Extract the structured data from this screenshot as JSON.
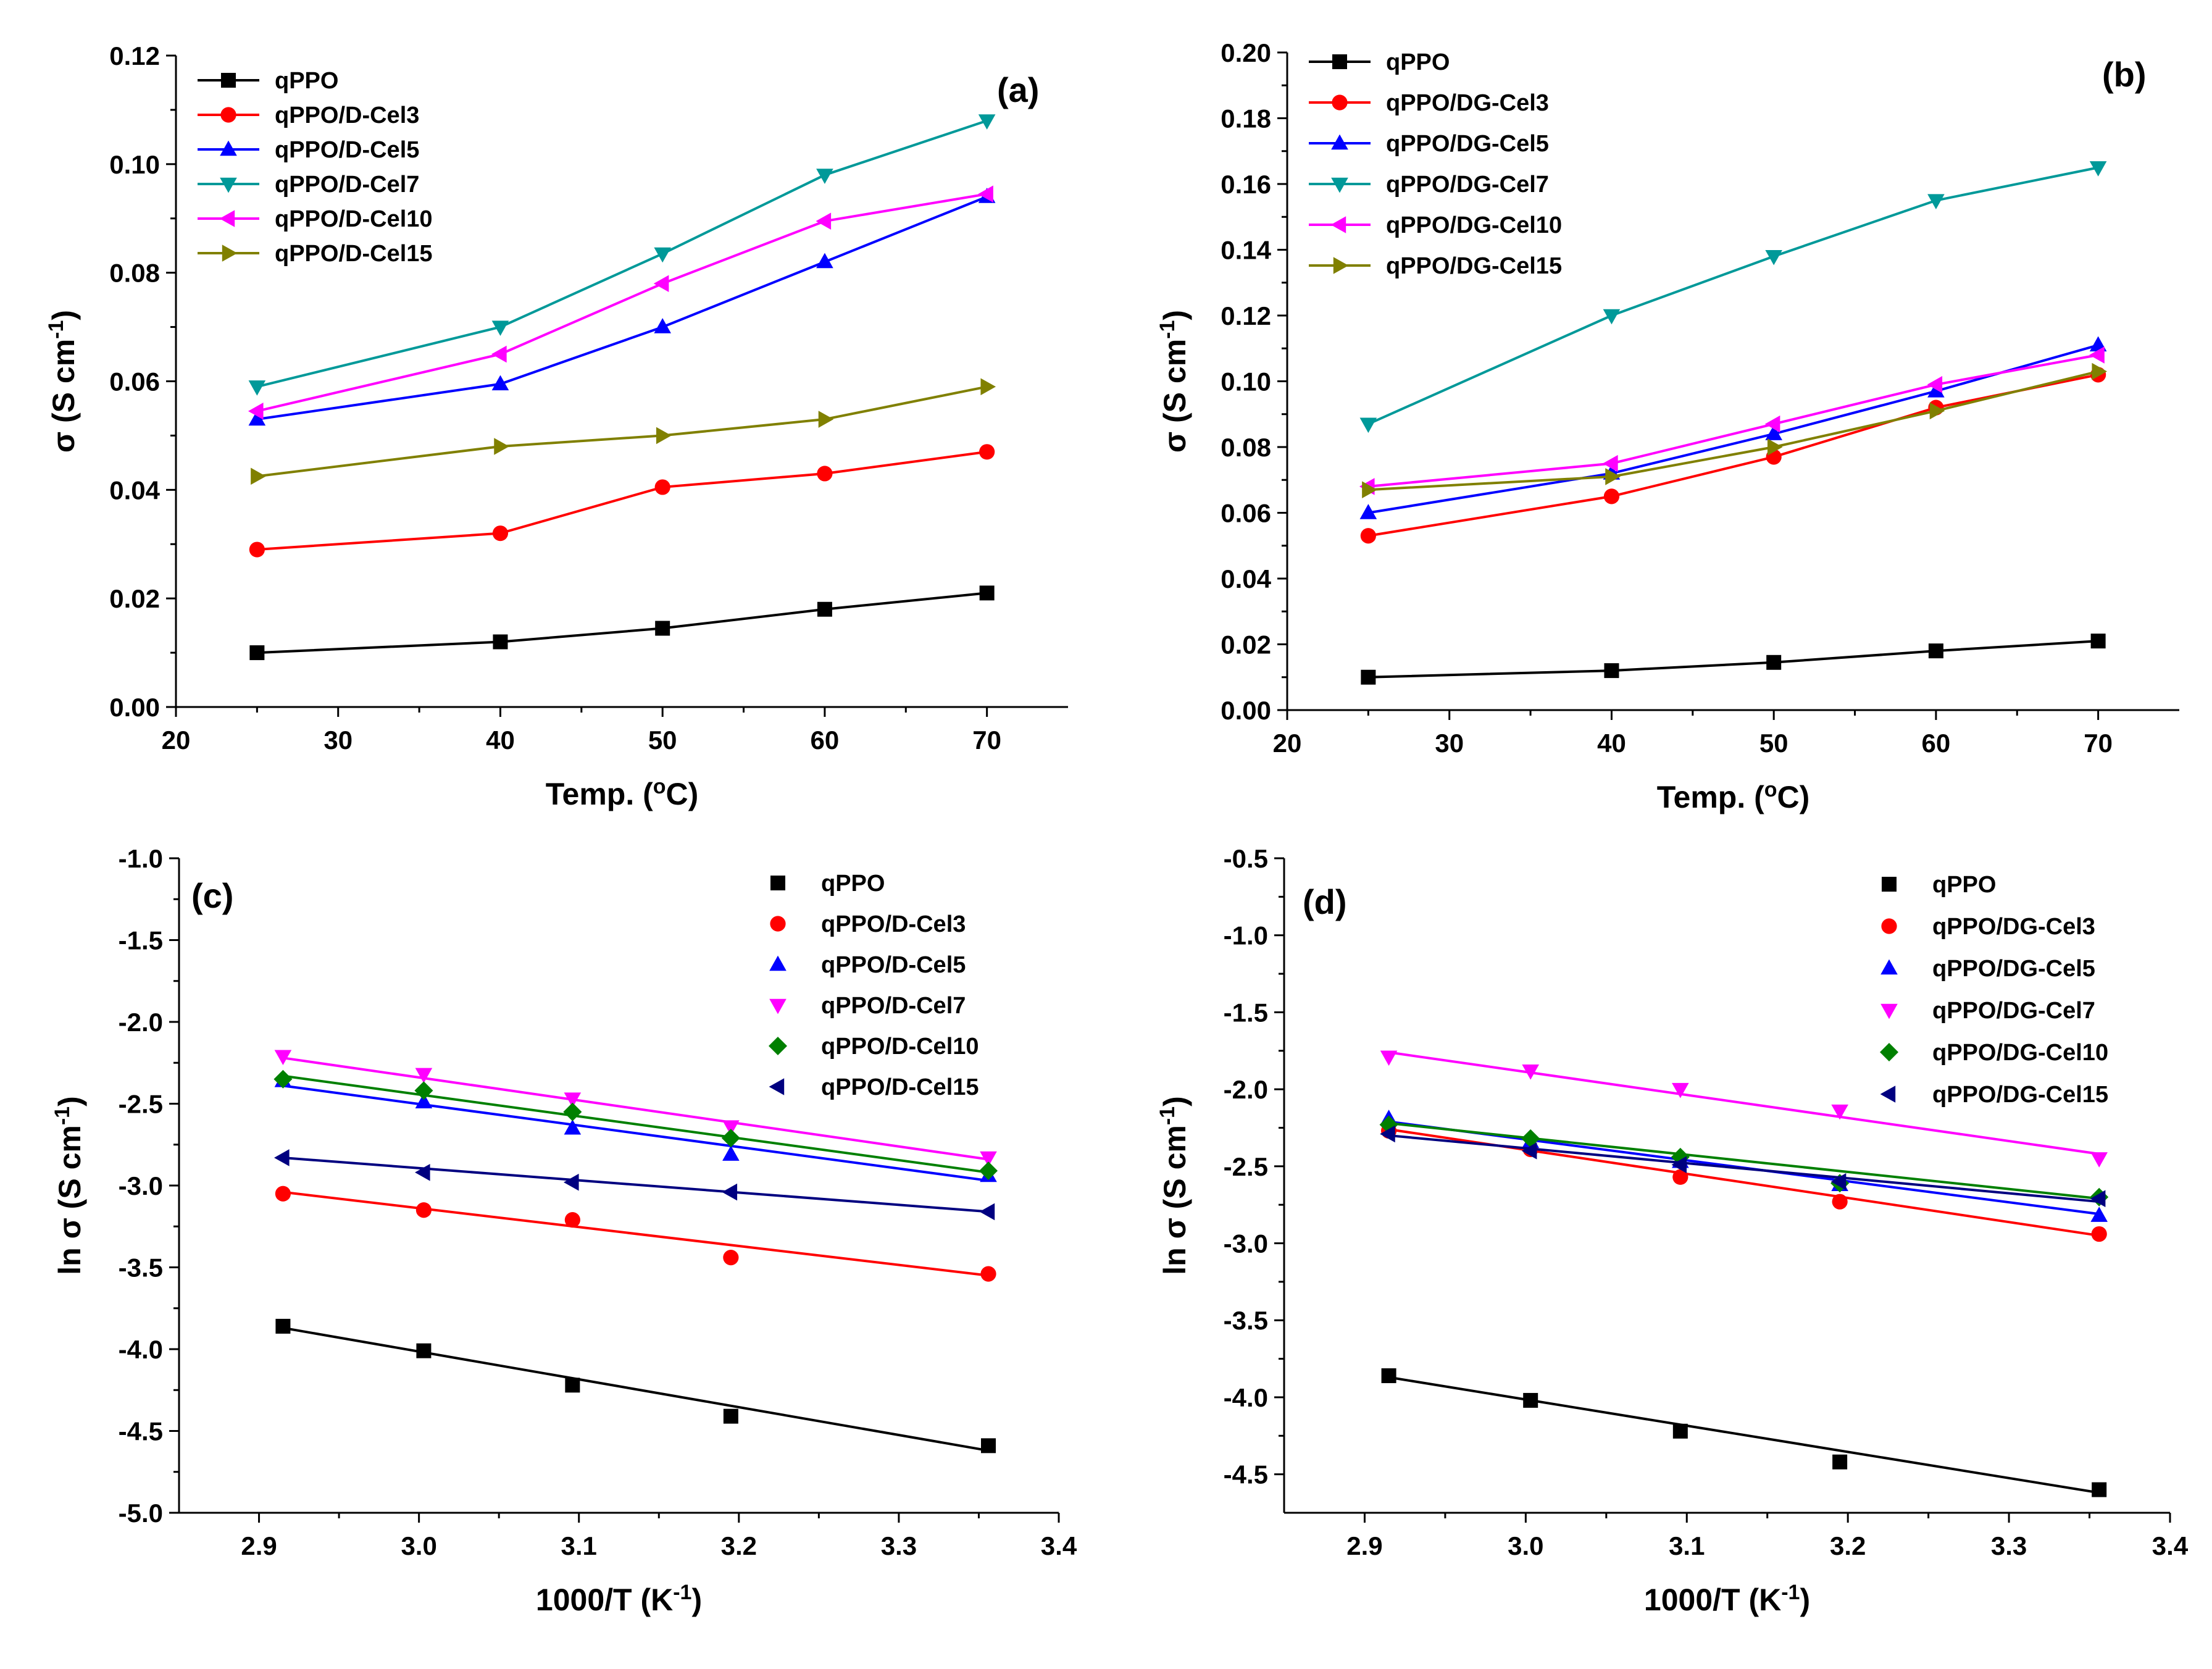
{
  "chart_data": [
    {
      "id": "a",
      "type": "line",
      "panel_label": "(a)",
      "xlabel": "Temp. (",
      "xlabel_sup": "o",
      "xlabel_tail": "C)",
      "ylabel": "σ (S cm",
      "ylabel_sup": "-1",
      "ylabel_tail": ")",
      "xlim": [
        20,
        75
      ],
      "ylim": [
        0,
        0.12
      ],
      "xticks": [
        20,
        30,
        40,
        50,
        60,
        70
      ],
      "yticks": [
        0.0,
        0.02,
        0.04,
        0.06,
        0.08,
        0.1,
        0.12
      ],
      "xtick_labels": [
        "20",
        "30",
        "40",
        "50",
        "60",
        "70"
      ],
      "ytick_labels": [
        "0.00",
        "0.02",
        "0.04",
        "0.06",
        "0.08",
        "0.10",
        "0.12"
      ],
      "legend_position": "top-left",
      "x": [
        25,
        40,
        50,
        60,
        70
      ],
      "series": [
        {
          "name": "qPPO",
          "color": "#000000",
          "marker": "square",
          "values": [
            0.01,
            0.012,
            0.0145,
            0.018,
            0.021
          ]
        },
        {
          "name": "qPPO/D-Cel3",
          "color": "#ff0000",
          "marker": "circle",
          "values": [
            0.029,
            0.032,
            0.0405,
            0.043,
            0.047
          ]
        },
        {
          "name": "qPPO/D-Cel5",
          "color": "#0000ff",
          "marker": "triangle-up",
          "values": [
            0.053,
            0.0595,
            0.07,
            0.082,
            0.094
          ]
        },
        {
          "name": "qPPO/D-Cel7",
          "color": "#009999",
          "marker": "triangle-down",
          "values": [
            0.059,
            0.07,
            0.0835,
            0.098,
            0.108
          ]
        },
        {
          "name": "qPPO/D-Cel10",
          "color": "#ff00ff",
          "marker": "triangle-left",
          "values": [
            0.0545,
            0.065,
            0.078,
            0.0895,
            0.0945
          ]
        },
        {
          "name": "qPPO/D-Cel15",
          "color": "#808000",
          "marker": "triangle-right",
          "values": [
            0.0425,
            0.048,
            0.05,
            0.053,
            0.059
          ]
        }
      ]
    },
    {
      "id": "b",
      "type": "line",
      "panel_label": "(b)",
      "xlabel": "Temp. (",
      "xlabel_sup": "o",
      "xlabel_tail": "C)",
      "ylabel": "σ (S cm",
      "ylabel_sup": "-1",
      "ylabel_tail": ")",
      "xlim": [
        20,
        75
      ],
      "ylim": [
        0,
        0.2
      ],
      "xticks": [
        20,
        30,
        40,
        50,
        60,
        70
      ],
      "yticks": [
        0.0,
        0.02,
        0.04,
        0.06,
        0.08,
        0.1,
        0.12,
        0.14,
        0.16,
        0.18,
        0.2
      ],
      "xtick_labels": [
        "20",
        "30",
        "40",
        "50",
        "60",
        "70"
      ],
      "ytick_labels": [
        "0.00",
        "0.02",
        "0.04",
        "0.06",
        "0.08",
        "0.10",
        "0.12",
        "0.14",
        "0.16",
        "0.18",
        "0.20"
      ],
      "legend_position": "top-left",
      "x": [
        25,
        40,
        50,
        60,
        70
      ],
      "series": [
        {
          "name": "qPPO",
          "color": "#000000",
          "marker": "square",
          "values": [
            0.01,
            0.012,
            0.0145,
            0.018,
            0.021
          ]
        },
        {
          "name": "qPPO/DG-Cel3",
          "color": "#ff0000",
          "marker": "circle",
          "values": [
            0.053,
            0.065,
            0.077,
            0.092,
            0.102
          ]
        },
        {
          "name": "qPPO/DG-Cel5",
          "color": "#0000ff",
          "marker": "triangle-up",
          "values": [
            0.06,
            0.072,
            0.084,
            0.097,
            0.111
          ]
        },
        {
          "name": "qPPO/DG-Cel7",
          "color": "#009999",
          "marker": "triangle-down",
          "values": [
            0.087,
            0.12,
            0.138,
            0.155,
            0.165
          ]
        },
        {
          "name": "qPPO/DG-Cel10",
          "color": "#ff00ff",
          "marker": "triangle-left",
          "values": [
            0.068,
            0.075,
            0.087,
            0.099,
            0.108
          ]
        },
        {
          "name": "qPPO/DG-Cel15",
          "color": "#808000",
          "marker": "triangle-right",
          "values": [
            0.067,
            0.071,
            0.08,
            0.091,
            0.103
          ]
        }
      ]
    },
    {
      "id": "c",
      "type": "scatter",
      "panel_label": "(c)",
      "xlabel": "1000/T (K",
      "xlabel_sup": "-1",
      "xlabel_tail": ")",
      "ylabel": "ln σ (S cm",
      "ylabel_sup": "-1",
      "ylabel_tail": ")",
      "xlim": [
        2.85,
        3.4
      ],
      "ylim": [
        -5.0,
        -1.0
      ],
      "xticks": [
        2.9,
        3.0,
        3.1,
        3.2,
        3.3,
        3.4
      ],
      "yticks": [
        -5.0,
        -4.5,
        -4.0,
        -3.5,
        -3.0,
        -2.5,
        -2.0,
        -1.5,
        -1.0
      ],
      "xtick_labels": [
        "2.9",
        "3.0",
        "3.1",
        "3.2",
        "3.3",
        "3.4"
      ],
      "ytick_labels": [
        "-5.0",
        "-4.5",
        "-4.0",
        "-3.5",
        "-3.0",
        "-2.5",
        "-2.0",
        "-1.5",
        "-1.0"
      ],
      "legend_position": "top-right",
      "fit_lines": true,
      "x": [
        2.915,
        3.003,
        3.096,
        3.195,
        3.356
      ],
      "series": [
        {
          "name": "qPPO",
          "color": "#000000",
          "marker": "square",
          "values": [
            -3.86,
            -4.01,
            -4.22,
            -4.41,
            -4.59
          ],
          "fit": [
            -3.87,
            -4.62
          ]
        },
        {
          "name": "qPPO/D-Cel3",
          "color": "#ff0000",
          "marker": "circle",
          "values": [
            -3.05,
            -3.15,
            -3.21,
            -3.44,
            -3.54
          ],
          "fit": [
            -3.04,
            -3.55
          ]
        },
        {
          "name": "qPPO/D-Cel5",
          "color": "#0000ff",
          "marker": "triangle-up",
          "values": [
            -2.36,
            -2.49,
            -2.65,
            -2.81,
            -2.94
          ],
          "fit": [
            -2.39,
            -2.97
          ]
        },
        {
          "name": "qPPO/D-Cel7",
          "color": "#ff00ff",
          "marker": "triangle-down",
          "values": [
            -2.21,
            -2.32,
            -2.47,
            -2.64,
            -2.83
          ],
          "fit": [
            -2.22,
            -2.84
          ]
        },
        {
          "name": "qPPO/D-Cel10",
          "color": "#008000",
          "marker": "diamond",
          "values": [
            -2.35,
            -2.42,
            -2.55,
            -2.71,
            -2.91
          ],
          "fit": [
            -2.33,
            -2.92
          ]
        },
        {
          "name": "qPPO/D-Cel15",
          "color": "#000080",
          "marker": "triangle-left",
          "values": [
            -2.83,
            -2.92,
            -2.98,
            -3.04,
            -3.16
          ],
          "fit": [
            -2.83,
            -3.16
          ]
        }
      ]
    },
    {
      "id": "d",
      "type": "scatter",
      "panel_label": "(d)",
      "xlabel": "1000/T (K",
      "xlabel_sup": "-1",
      "xlabel_tail": ")",
      "ylabel": "ln σ (S cm",
      "ylabel_sup": "-1",
      "ylabel_tail": ")",
      "xlim": [
        2.85,
        3.4
      ],
      "ylim": [
        -4.75,
        -0.5
      ],
      "xticks": [
        2.9,
        3.0,
        3.1,
        3.2,
        3.3,
        3.4
      ],
      "yticks": [
        -4.5,
        -4.0,
        -3.5,
        -3.0,
        -2.5,
        -2.0,
        -1.5,
        -1.0,
        -0.5
      ],
      "xtick_labels": [
        "2.9",
        "3.0",
        "3.1",
        "3.2",
        "3.3",
        "3.4"
      ],
      "ytick_labels": [
        "-4.5",
        "-4.0",
        "-3.5",
        "-3.0",
        "-2.5",
        "-2.0",
        "-1.5",
        "-1.0",
        "-0.5"
      ],
      "legend_position": "top-right",
      "fit_lines": true,
      "x": [
        2.915,
        3.003,
        3.096,
        3.195,
        3.356
      ],
      "series": [
        {
          "name": "qPPO",
          "color": "#000000",
          "marker": "square",
          "values": [
            -3.86,
            -4.02,
            -4.22,
            -4.42,
            -4.6
          ],
          "fit": [
            -3.87,
            -4.62
          ]
        },
        {
          "name": "qPPO/DG-Cel3",
          "color": "#ff0000",
          "marker": "circle",
          "values": [
            -2.27,
            -2.39,
            -2.57,
            -2.73,
            -2.94
          ],
          "fit": [
            -2.26,
            -2.95
          ]
        },
        {
          "name": "qPPO/DG-Cel5",
          "color": "#0000ff",
          "marker": "triangle-up",
          "values": [
            -2.19,
            -2.34,
            -2.47,
            -2.62,
            -2.82
          ],
          "fit": [
            -2.21,
            -2.81
          ]
        },
        {
          "name": "qPPO/DG-Cel7",
          "color": "#ff00ff",
          "marker": "triangle-down",
          "values": [
            -1.79,
            -1.88,
            -2.0,
            -2.14,
            -2.45
          ],
          "fit": [
            -1.76,
            -2.42
          ]
        },
        {
          "name": "qPPO/DG-Cel10",
          "color": "#008000",
          "marker": "diamond",
          "values": [
            -2.23,
            -2.32,
            -2.44,
            -2.61,
            -2.7
          ],
          "fit": [
            -2.22,
            -2.71
          ]
        },
        {
          "name": "qPPO/DG-Cel15",
          "color": "#000080",
          "marker": "triangle-left",
          "values": [
            -2.29,
            -2.4,
            -2.49,
            -2.6,
            -2.71
          ],
          "fit": [
            -2.3,
            -2.73
          ]
        }
      ]
    }
  ]
}
